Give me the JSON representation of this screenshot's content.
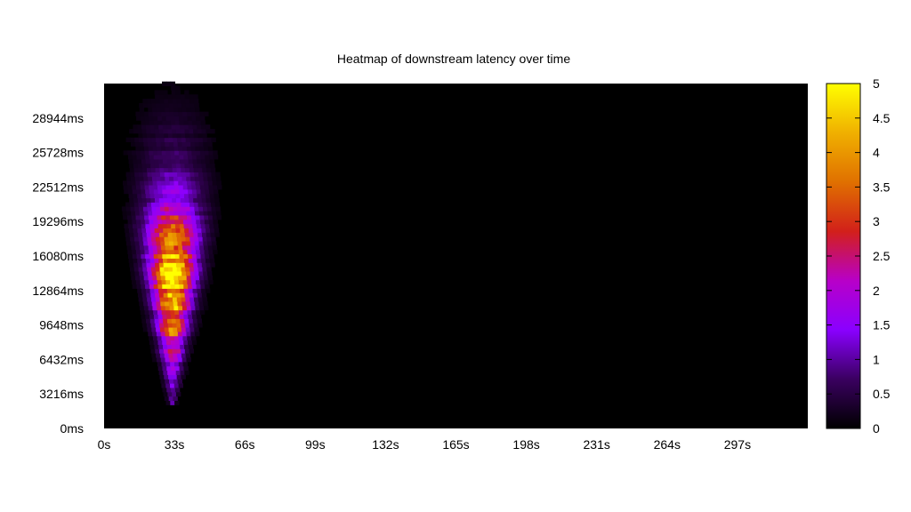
{
  "chart_data": {
    "type": "heatmap",
    "title": "Heatmap of downstream latency over time",
    "xlabel": "",
    "ylabel": "",
    "x_ticks": [
      "0s",
      "33s",
      "66s",
      "99s",
      "132s",
      "165s",
      "198s",
      "231s",
      "264s",
      "297s"
    ],
    "x_tick_values": [
      0,
      33,
      66,
      99,
      132,
      165,
      198,
      231,
      264,
      297
    ],
    "xlim": [
      0,
      330
    ],
    "y_ticks": [
      "0ms",
      "3216ms",
      "6432ms",
      "9648ms",
      "12864ms",
      "16080ms",
      "19296ms",
      "22512ms",
      "25728ms",
      "28944ms"
    ],
    "y_tick_values": [
      0,
      3216,
      6432,
      9648,
      12864,
      16080,
      19296,
      22512,
      25728,
      28944
    ],
    "ylim": [
      0,
      32160
    ],
    "colorbar": {
      "ticks": [
        "0",
        "0.5",
        "1",
        "1.5",
        "2",
        "2.5",
        "3",
        "3.5",
        "4",
        "4.5",
        "5"
      ],
      "tick_values": [
        0,
        0.5,
        1,
        1.5,
        2,
        2.5,
        3,
        3.5,
        4,
        4.5,
        5
      ],
      "range": [
        0,
        5
      ],
      "colormap": [
        "#000000",
        "#3a0060",
        "#8a00ff",
        "#b800c8",
        "#d2201a",
        "#e07000",
        "#f0b000",
        "#ffff00"
      ]
    },
    "background_color": "#000000",
    "grid": false,
    "cell_x_step": 2,
    "cell_y_step": 402,
    "cluster": {
      "description_values": "density concentrated between ~4s and ~52s, peak near 31s",
      "x_center": 31,
      "tip_y": 2200,
      "top_y": 32160,
      "peak_y": 13500,
      "peak_value": 4.5,
      "width_at_top": 24,
      "width_at_tip": 2
    }
  }
}
